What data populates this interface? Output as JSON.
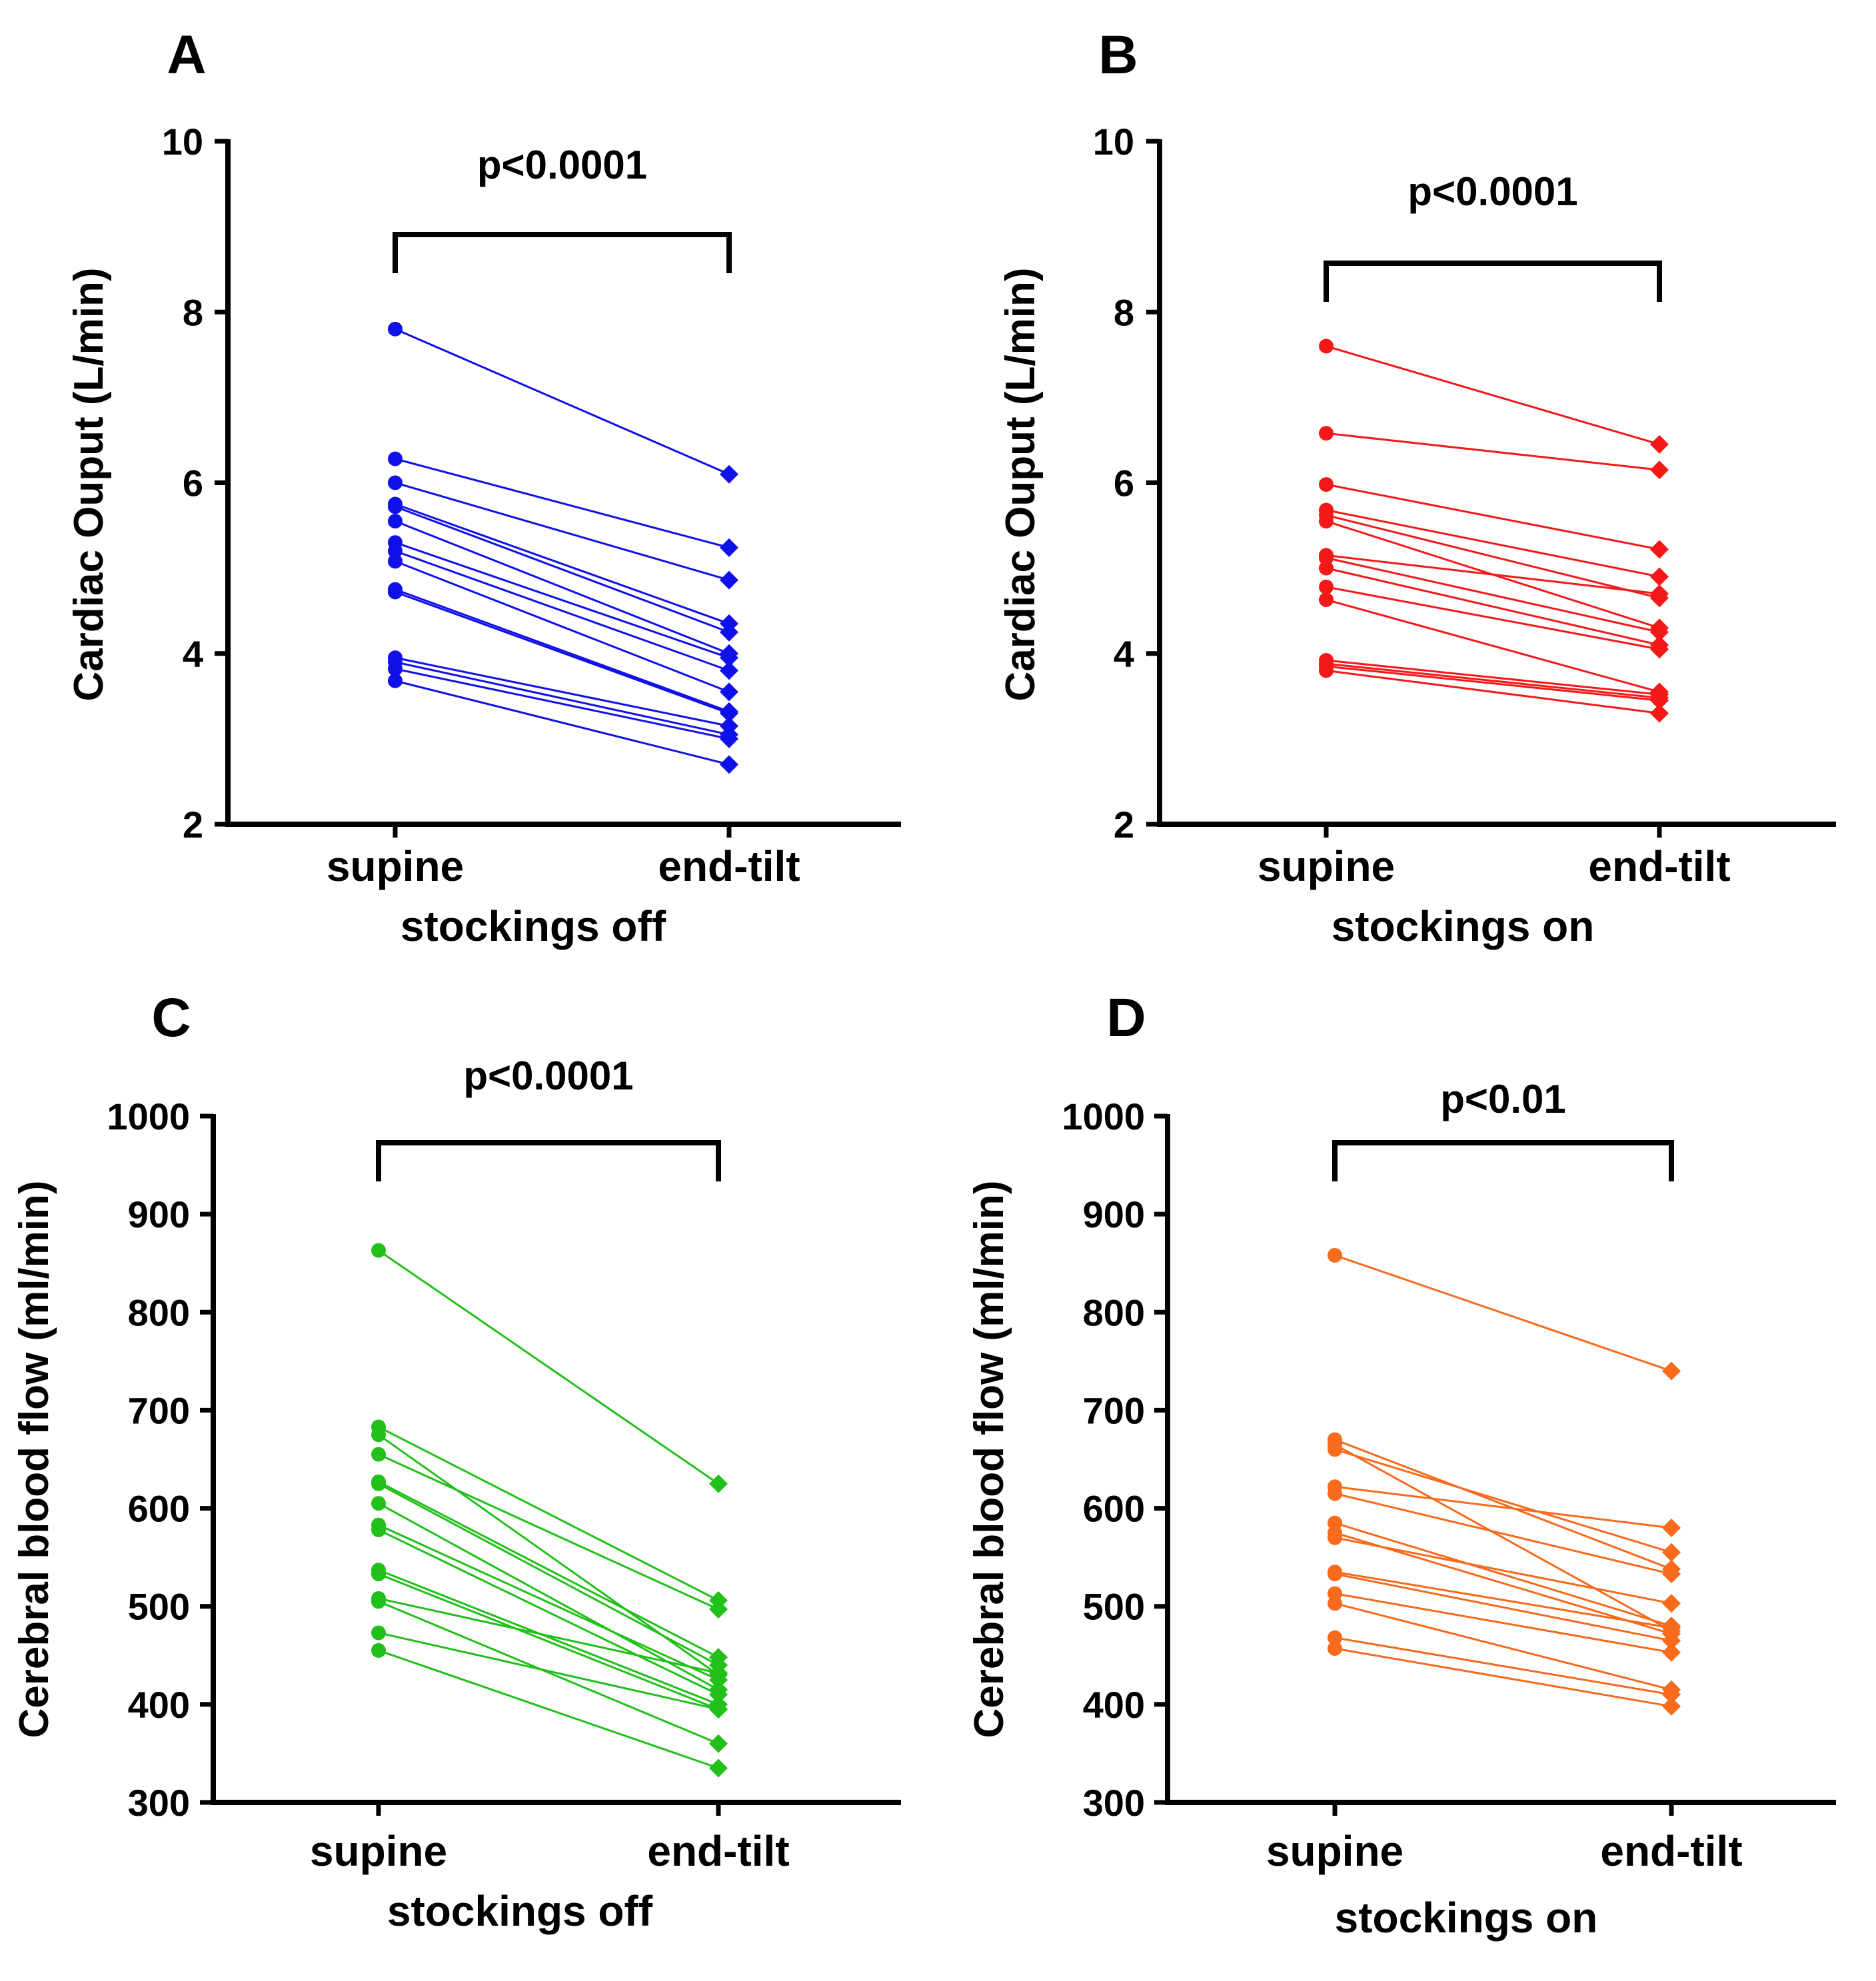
{
  "chart_data": [
    {
      "type": "line",
      "panel": "A",
      "ylabel": "Cardiac Ouput  (L/min)",
      "xlabel": "stockings off",
      "categories": [
        "supine",
        "end-tilt"
      ],
      "ylim": [
        2,
        10
      ],
      "yticks": [
        "2",
        "4",
        "6",
        "8",
        "10"
      ],
      "pvalue": "p<0.0001",
      "color": "#1010e8",
      "pairs": [
        [
          7.8,
          6.1
        ],
        [
          6.28,
          5.24
        ],
        [
          6.0,
          4.86
        ],
        [
          5.75,
          4.35
        ],
        [
          5.72,
          4.25
        ],
        [
          5.55,
          4.0
        ],
        [
          5.3,
          3.95
        ],
        [
          5.2,
          3.8
        ],
        [
          5.08,
          3.55
        ],
        [
          4.75,
          3.32
        ],
        [
          4.72,
          3.3
        ],
        [
          3.95,
          3.15
        ],
        [
          3.9,
          3.05
        ],
        [
          3.82,
          3.0
        ],
        [
          3.68,
          2.7
        ]
      ]
    },
    {
      "type": "line",
      "panel": "B",
      "ylabel": "Cardiac Ouput  (L/min)",
      "xlabel": "stockings on",
      "categories": [
        "supine",
        "end-tilt"
      ],
      "ylim": [
        2,
        10
      ],
      "yticks": [
        "2",
        "4",
        "6",
        "8",
        "10"
      ],
      "pvalue": "p<0.0001",
      "color": "#f41818",
      "pairs": [
        [
          7.6,
          6.45
        ],
        [
          6.58,
          6.15
        ],
        [
          5.98,
          5.22
        ],
        [
          5.68,
          4.9
        ],
        [
          5.62,
          4.65
        ],
        [
          5.55,
          4.3
        ],
        [
          5.15,
          4.7
        ],
        [
          5.12,
          4.25
        ],
        [
          5.0,
          4.1
        ],
        [
          4.78,
          4.05
        ],
        [
          4.63,
          3.55
        ],
        [
          3.92,
          3.52
        ],
        [
          3.88,
          3.48
        ],
        [
          3.85,
          3.45
        ],
        [
          3.8,
          3.3
        ]
      ]
    },
    {
      "type": "line",
      "panel": "C",
      "ylabel": "Cerebral blood flow (ml/min)",
      "xlabel": "stockings off",
      "categories": [
        "supine",
        "end-tilt"
      ],
      "ylim": [
        300,
        1000
      ],
      "yticks": [
        "300",
        "400",
        "500",
        "600",
        "700",
        "800",
        "900",
        "1000"
      ],
      "pvalue": "p<0.0001",
      "color": "#22c01a",
      "pairs": [
        [
          863,
          625
        ],
        [
          683,
          506
        ],
        [
          675,
          430
        ],
        [
          655,
          497
        ],
        [
          627,
          448
        ],
        [
          625,
          440
        ],
        [
          605,
          415
        ],
        [
          583,
          425
        ],
        [
          578,
          410
        ],
        [
          537,
          400
        ],
        [
          533,
          395
        ],
        [
          508,
          432
        ],
        [
          505,
          360
        ],
        [
          473,
          395
        ],
        [
          455,
          335
        ]
      ]
    },
    {
      "type": "line",
      "panel": "D",
      "ylabel": "Cerebral blood flow (ml/min)",
      "xlabel": "stockings on",
      "categories": [
        "supine",
        "end-tilt"
      ],
      "ylim": [
        300,
        1000
      ],
      "yticks": [
        "300",
        "400",
        "500",
        "600",
        "700",
        "800",
        "900",
        "1000"
      ],
      "pvalue": "p<0.01",
      "color": "#f86a1c",
      "pairs": [
        [
          858,
          740
        ],
        [
          670,
          538
        ],
        [
          665,
          475
        ],
        [
          660,
          555
        ],
        [
          622,
          580
        ],
        [
          615,
          533
        ],
        [
          585,
          480
        ],
        [
          575,
          472
        ],
        [
          570,
          503
        ],
        [
          535,
          478
        ],
        [
          533,
          465
        ],
        [
          513,
          453
        ],
        [
          503,
          415
        ],
        [
          468,
          410
        ],
        [
          457,
          398
        ]
      ]
    }
  ]
}
